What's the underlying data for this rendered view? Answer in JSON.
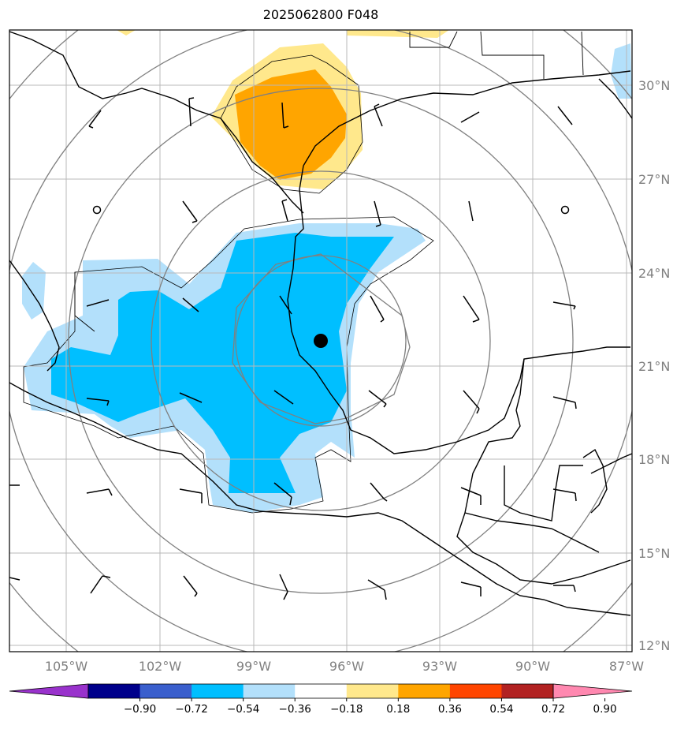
{
  "title": "2025062800 F048",
  "map": {
    "projection": "polar-stereographic",
    "lon_range": [
      -107,
      -87
    ],
    "lat_range": [
      12,
      32
    ],
    "lon_ticks": [
      {
        "value": -105,
        "label": "105°W"
      },
      {
        "value": -102,
        "label": "102°W"
      },
      {
        "value": -99,
        "label": "99°W"
      },
      {
        "value": -96,
        "label": "96°W"
      },
      {
        "value": -93,
        "label": "93°W"
      },
      {
        "value": -90,
        "label": "90°W"
      },
      {
        "value": -87,
        "label": "87°W"
      }
    ],
    "lat_ticks": [
      {
        "value": 30,
        "label": "30°N"
      },
      {
        "value": 27,
        "label": "27°N"
      },
      {
        "value": 24,
        "label": "24°N"
      },
      {
        "value": 21,
        "label": "21°N"
      },
      {
        "value": 18,
        "label": "18°N"
      },
      {
        "value": 15,
        "label": "15°N"
      },
      {
        "value": 12,
        "label": "12°N"
      }
    ],
    "center_marker": {
      "lon": -96.8,
      "lat": 21.8,
      "label": ""
    },
    "range_rings": 5,
    "gridlines": true,
    "colors": {
      "coast": "#000000",
      "grid": "#c0c0c0",
      "rings": "#808080",
      "neg_light": "#b3e0fb",
      "neg_mid": "#00bfff",
      "pos_light": "#ffe88c",
      "pos_mid": "#ffa500"
    }
  },
  "colorbar": {
    "ticks": [
      "−0.90",
      "−0.72",
      "−0.54",
      "−0.36",
      "−0.18",
      "0.18",
      "0.36",
      "0.54",
      "0.72",
      "0.90"
    ],
    "colors": [
      "#9932cc",
      "#00008b",
      "#3a5fcd",
      "#00bfff",
      "#b3e0fb",
      "#ffffff",
      "#ffe88c",
      "#ffa500",
      "#ff4500",
      "#b22222",
      "#ff88b0"
    ],
    "extend": "both"
  },
  "wind_barbs": {
    "present": true
  }
}
